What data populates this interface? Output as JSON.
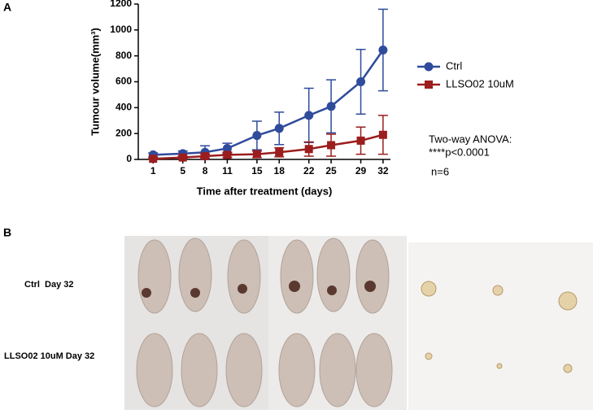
{
  "panels": {
    "a": "A",
    "b": "B"
  },
  "chart_data": {
    "type": "line",
    "x_label": "Time after treatment (days)",
    "y_label": "Tumour volume(mm³)",
    "x": [
      1,
      5,
      8,
      11,
      15,
      18,
      22,
      25,
      29,
      32
    ],
    "series": [
      {
        "name": "Ctrl",
        "color": "#2f4b9b",
        "marker": "circle",
        "values": [
          35,
          45,
          55,
          85,
          185,
          240,
          340,
          410,
          600,
          845
        ],
        "errors": [
          15,
          20,
          50,
          40,
          110,
          125,
          210,
          205,
          250,
          315
        ]
      },
      {
        "name": "LLSO02 10uM",
        "color": "#9b1d1d",
        "marker": "square",
        "values": [
          5,
          15,
          25,
          35,
          40,
          55,
          80,
          110,
          145,
          190
        ],
        "errors": [
          5,
          10,
          15,
          20,
          25,
          35,
          55,
          85,
          105,
          150
        ]
      }
    ],
    "xlim": [
      -1,
      33
    ],
    "ylim": [
      0,
      1200
    ],
    "xticks": [
      1,
      5,
      8,
      11,
      15,
      18,
      22,
      25,
      29,
      32
    ],
    "yticks": [
      0,
      200,
      400,
      600,
      800,
      1000,
      1200
    ],
    "annotations": [
      "Two-way ANOVA:",
      "****p<0.0001",
      "n=6"
    ]
  },
  "photo_labels": [
    "Ctrl  Day 32",
    "LLSO02 10uM Day 32"
  ]
}
